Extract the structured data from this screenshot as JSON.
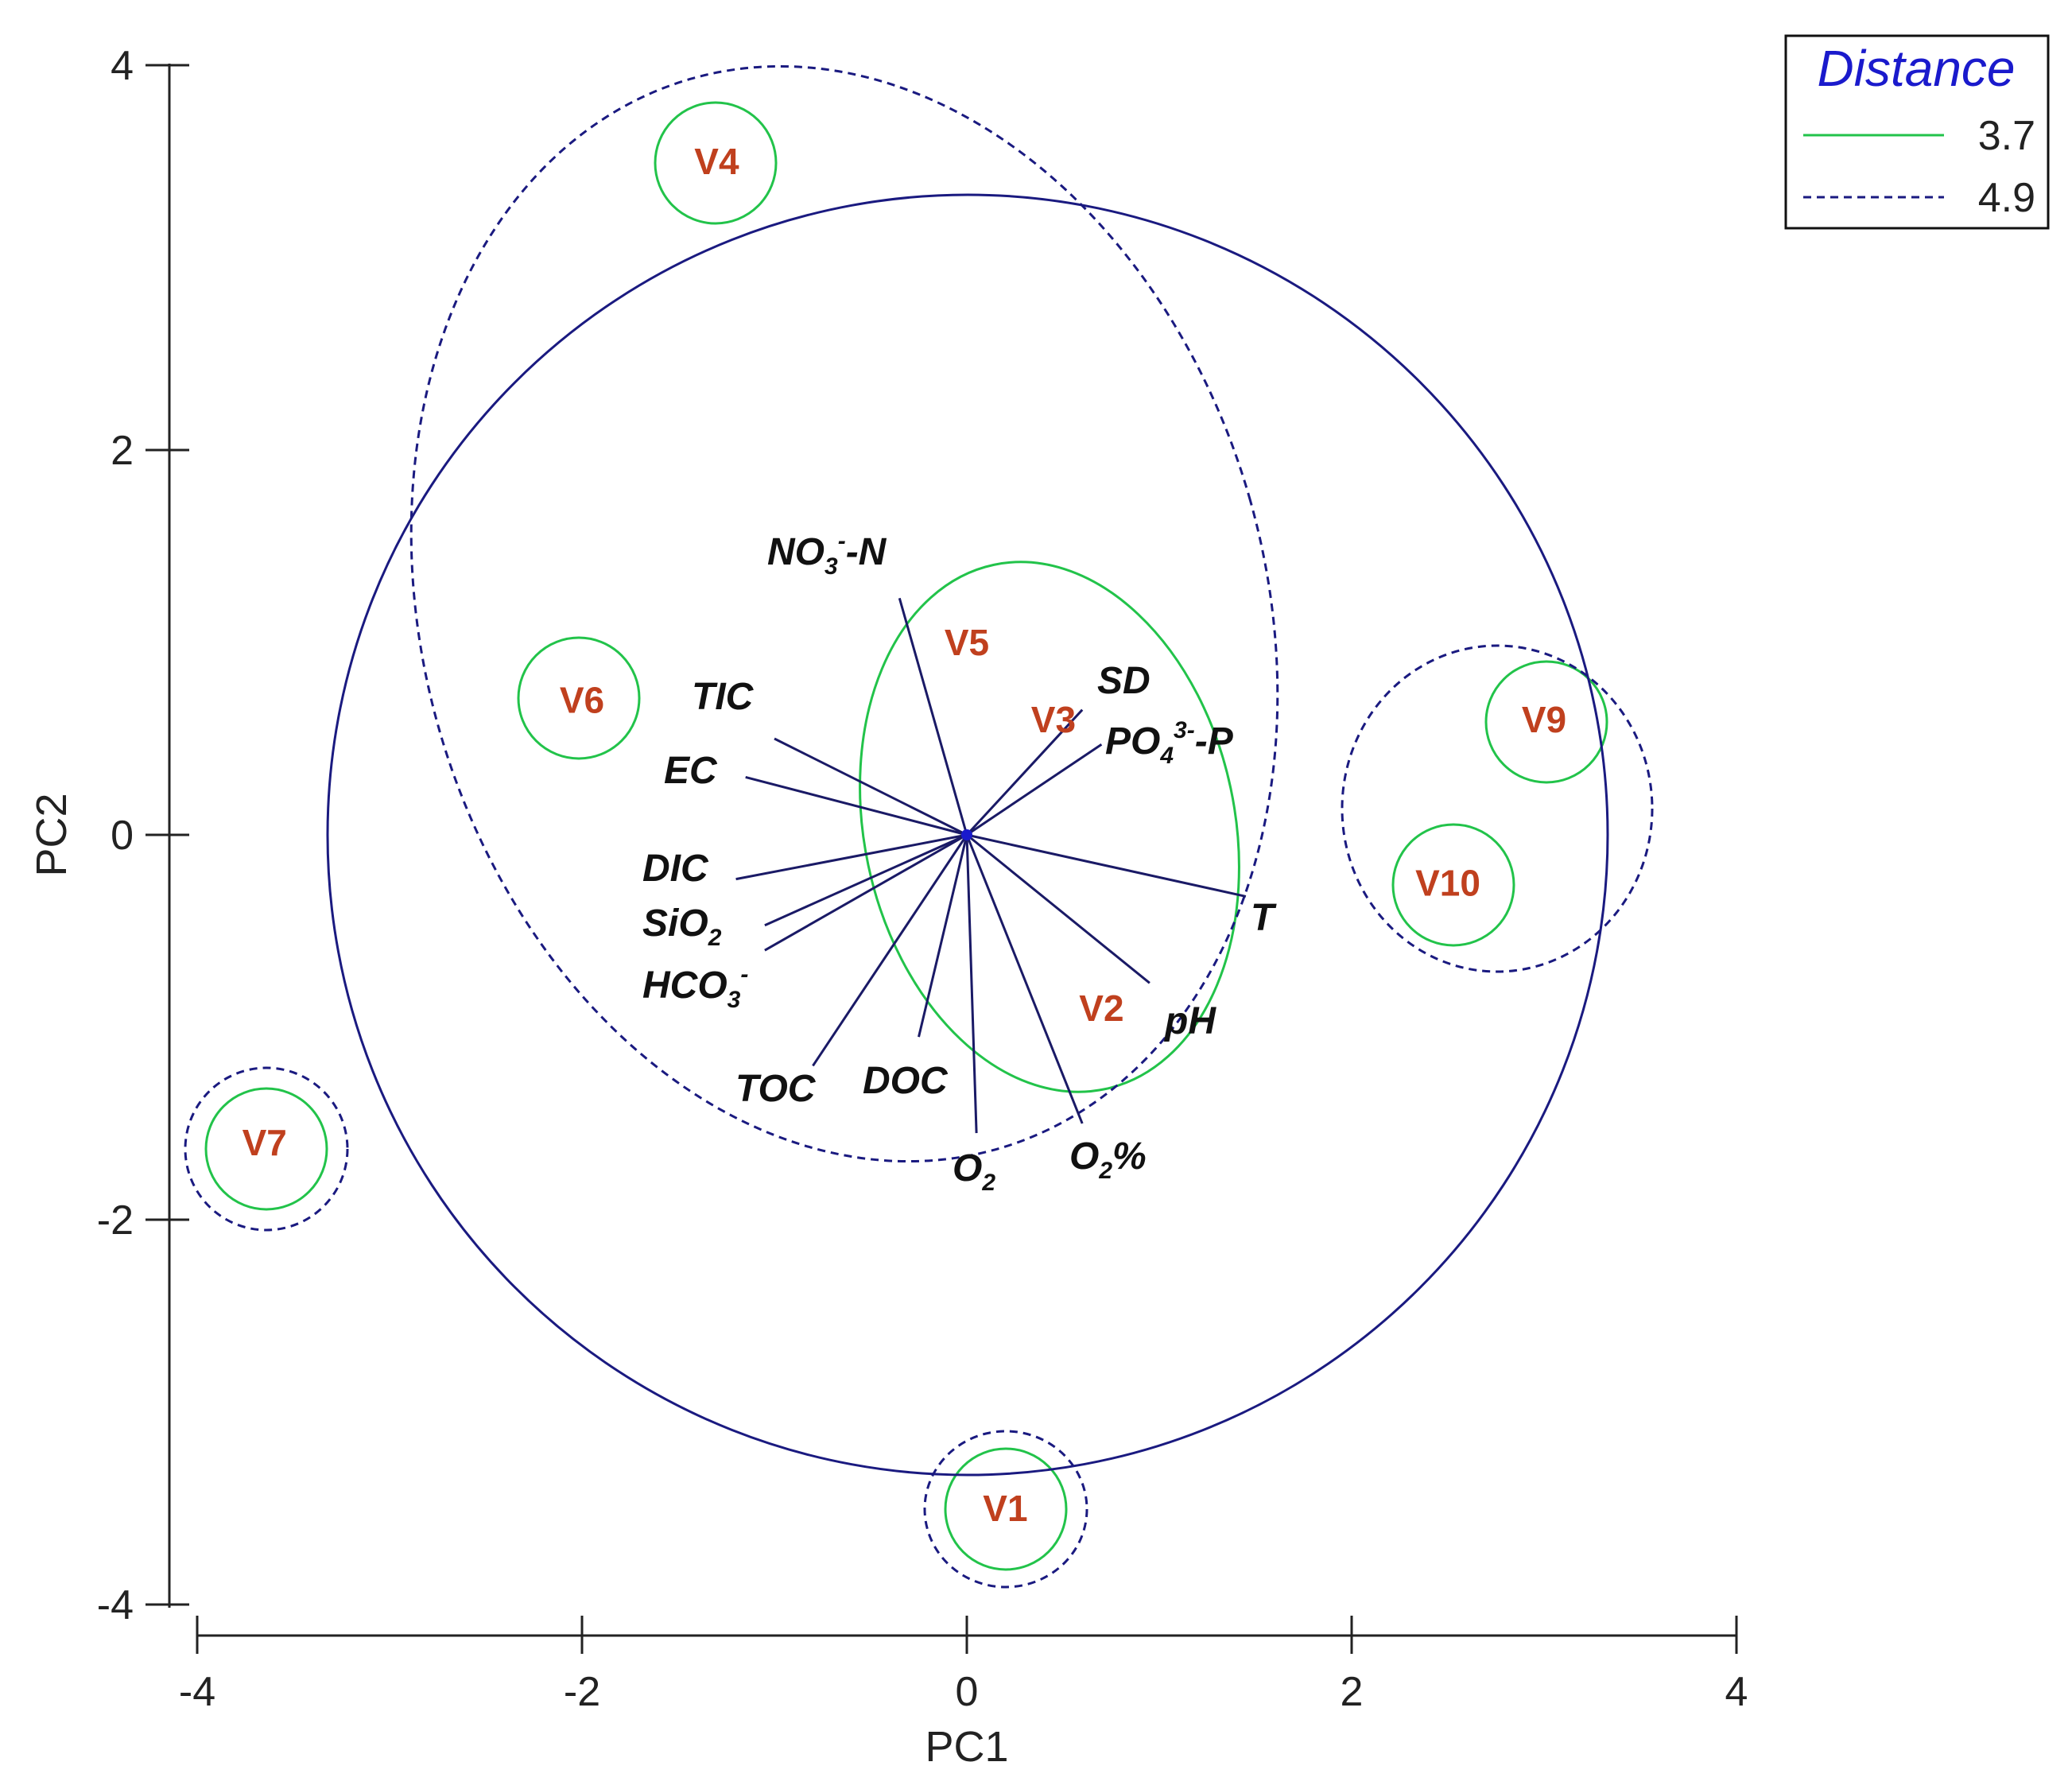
{
  "chart_data": {
    "type": "scatter",
    "xlabel": "PC1",
    "ylabel": "PC2",
    "xlim": [
      -4,
      4
    ],
    "ylim": [
      -4,
      4
    ],
    "x_ticks": [
      "-4",
      "-2",
      "0",
      "2",
      "4"
    ],
    "y_ticks": [
      "4",
      "2",
      "0",
      "-2",
      "-4"
    ],
    "colors": {
      "axis": "#222222",
      "site_label": "#c0401e",
      "vector": "#1a1a66",
      "distance_3_7": "#22c34a",
      "distance_4_9": "#1a1a80",
      "legend_title": "#1a1acc"
    },
    "sites": [
      {
        "label": "V1",
        "x": 0.2,
        "y": -3.5
      },
      {
        "label": "V2",
        "x": 0.7,
        "y": -0.9
      },
      {
        "label": "V3",
        "x": 0.45,
        "y": 0.6
      },
      {
        "label": "V4",
        "x": -1.3,
        "y": 3.5
      },
      {
        "label": "V5",
        "x": 0.0,
        "y": 1.0
      },
      {
        "label": "V6",
        "x": -2.0,
        "y": 0.7
      },
      {
        "label": "V7",
        "x": -3.65,
        "y": -1.6
      },
      {
        "label": "V9",
        "x": 3.0,
        "y": 0.6
      },
      {
        "label": "V10",
        "x": 2.5,
        "y": -0.25
      }
    ],
    "vectors": [
      {
        "label": "NO3--N",
        "x": -0.35,
        "y": 1.23
      },
      {
        "label": "SD",
        "x": 0.6,
        "y": 0.65
      },
      {
        "label": "PO43--P",
        "x": 0.7,
        "y": 0.47
      },
      {
        "label": "TIC",
        "x": -1.0,
        "y": 0.5
      },
      {
        "label": "EC",
        "x": -1.15,
        "y": 0.3
      },
      {
        "label": "DIC",
        "x": -1.2,
        "y": -0.23
      },
      {
        "label": "SiO2",
        "x": -1.05,
        "y": -0.47
      },
      {
        "label": "HCO3-",
        "x": -1.05,
        "y": -0.6
      },
      {
        "label": "TOC",
        "x": -0.8,
        "y": -1.2
      },
      {
        "label": "DOC",
        "x": -0.25,
        "y": -1.05
      },
      {
        "label": "O2",
        "x": 0.05,
        "y": -1.55
      },
      {
        "label": "O2%",
        "x": 0.6,
        "y": -1.5
      },
      {
        "label": "pH",
        "x": 0.95,
        "y": -0.77
      },
      {
        "label": "T",
        "x": 1.45,
        "y": -0.32
      }
    ],
    "clusters": [
      {
        "distance": "3.7",
        "members": [
          "V1"
        ]
      },
      {
        "distance": "3.7",
        "members": [
          "V4"
        ]
      },
      {
        "distance": "3.7",
        "members": [
          "V6"
        ]
      },
      {
        "distance": "3.7",
        "members": [
          "V7"
        ]
      },
      {
        "distance": "3.7",
        "members": [
          "V9"
        ]
      },
      {
        "distance": "3.7",
        "members": [
          "V10"
        ]
      },
      {
        "distance": "3.7",
        "members": [
          "V2",
          "V3",
          "V5"
        ]
      },
      {
        "distance": "4.9",
        "members": [
          "V1"
        ]
      },
      {
        "distance": "4.9",
        "members": [
          "V7"
        ]
      },
      {
        "distance": "4.9",
        "members": [
          "V9",
          "V10"
        ]
      },
      {
        "distance": "4.9",
        "members": [
          "V2",
          "V3",
          "V4",
          "V5",
          "V6"
        ]
      }
    ],
    "legend": {
      "title": "Distance",
      "placement": "top-right",
      "entries": [
        {
          "label": "3.7",
          "style": "solid",
          "color": "#22c34a"
        },
        {
          "label": "4.9",
          "style": "dashed",
          "color": "#1a1a80"
        }
      ]
    }
  }
}
